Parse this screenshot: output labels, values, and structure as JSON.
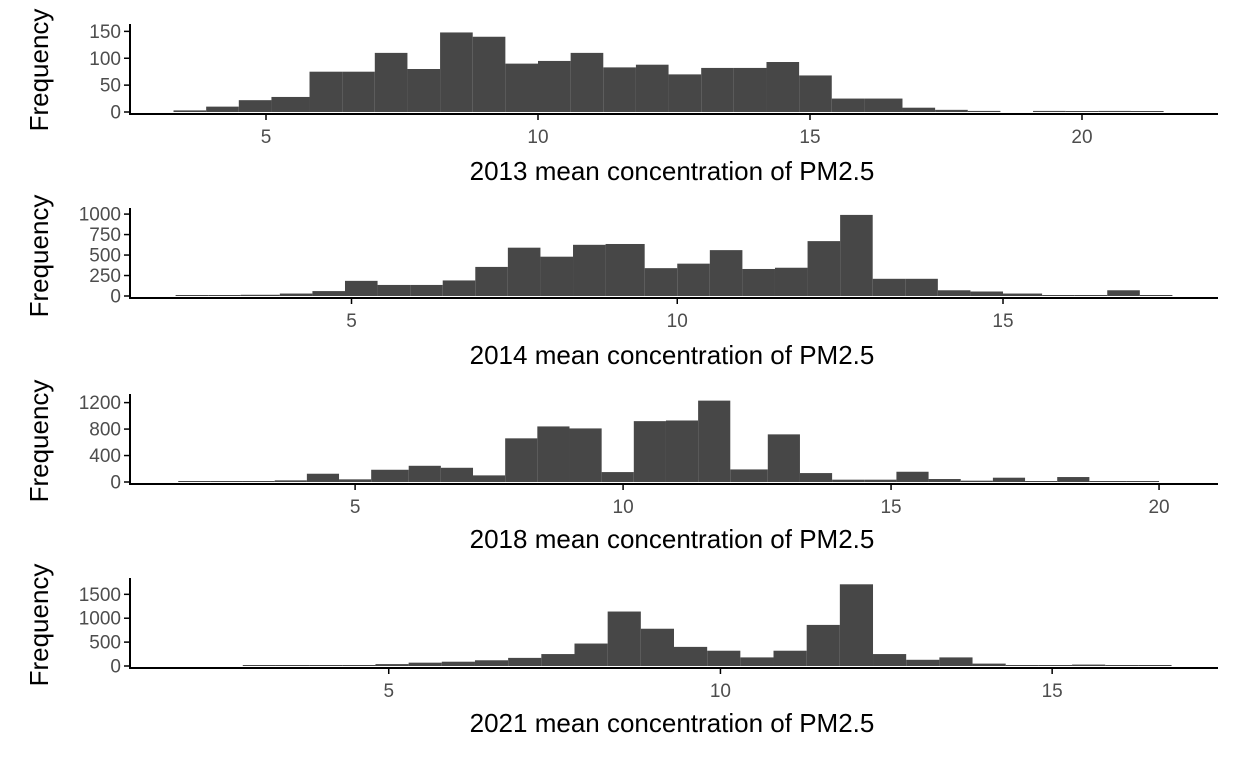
{
  "figure": {
    "background": "#ffffff",
    "bar_color": "#474747",
    "axis_color": "#000000",
    "tick_label_color": "#4d4d4d"
  },
  "chart_data": [
    {
      "type": "bar",
      "subtype": "histogram",
      "xlabel": "2013 mean concentration of PM2.5",
      "ylabel": "Frequency",
      "xlim": [
        2.5,
        22.5
      ],
      "ylim": [
        0,
        160
      ],
      "xticks": [
        5,
        10,
        15,
        20
      ],
      "yticks": [
        0,
        50,
        100,
        150
      ],
      "grid": false,
      "bins": [
        {
          "x0": 3.3,
          "x1": 3.9,
          "count": 3
        },
        {
          "x0": 3.9,
          "x1": 4.5,
          "count": 10
        },
        {
          "x0": 4.5,
          "x1": 5.1,
          "count": 22
        },
        {
          "x0": 5.1,
          "x1": 5.8,
          "count": 28
        },
        {
          "x0": 5.8,
          "x1": 6.4,
          "count": 75
        },
        {
          "x0": 6.4,
          "x1": 7.0,
          "count": 75
        },
        {
          "x0": 7.0,
          "x1": 7.6,
          "count": 110
        },
        {
          "x0": 7.6,
          "x1": 8.2,
          "count": 80
        },
        {
          "x0": 8.2,
          "x1": 8.8,
          "count": 148
        },
        {
          "x0": 8.8,
          "x1": 9.4,
          "count": 140
        },
        {
          "x0": 9.4,
          "x1": 10.0,
          "count": 90
        },
        {
          "x0": 10.0,
          "x1": 10.6,
          "count": 95
        },
        {
          "x0": 10.6,
          "x1": 11.2,
          "count": 110
        },
        {
          "x0": 11.2,
          "x1": 11.8,
          "count": 83
        },
        {
          "x0": 11.8,
          "x1": 12.4,
          "count": 88
        },
        {
          "x0": 12.4,
          "x1": 13.0,
          "count": 70
        },
        {
          "x0": 13.0,
          "x1": 13.6,
          "count": 82
        },
        {
          "x0": 13.6,
          "x1": 14.2,
          "count": 82
        },
        {
          "x0": 14.2,
          "x1": 14.8,
          "count": 93
        },
        {
          "x0": 14.8,
          "x1": 15.4,
          "count": 68
        },
        {
          "x0": 15.4,
          "x1": 16.0,
          "count": 25
        },
        {
          "x0": 16.0,
          "x1": 16.7,
          "count": 25
        },
        {
          "x0": 16.7,
          "x1": 17.3,
          "count": 8
        },
        {
          "x0": 17.3,
          "x1": 17.9,
          "count": 4
        },
        {
          "x0": 17.9,
          "x1": 18.5,
          "count": 2
        },
        {
          "x0": 18.5,
          "x1": 19.1,
          "count": 0
        },
        {
          "x0": 19.1,
          "x1": 19.7,
          "count": 2
        },
        {
          "x0": 19.7,
          "x1": 20.3,
          "count": 1
        },
        {
          "x0": 20.3,
          "x1": 20.9,
          "count": 2
        },
        {
          "x0": 20.9,
          "x1": 21.5,
          "count": 1
        }
      ]
    },
    {
      "type": "bar",
      "subtype": "histogram",
      "xlabel": "2014 mean concentration of PM2.5",
      "ylabel": "Frequency",
      "xlim": [
        1.6,
        18.3
      ],
      "ylim": [
        0,
        1050
      ],
      "xticks": [
        5,
        10,
        15
      ],
      "yticks": [
        0,
        250,
        500,
        750,
        1000
      ],
      "grid": false,
      "bins": [
        {
          "x0": 2.3,
          "x1": 2.8,
          "count": 2
        },
        {
          "x0": 2.8,
          "x1": 3.3,
          "count": 5
        },
        {
          "x0": 3.3,
          "x1": 3.9,
          "count": 15
        },
        {
          "x0": 3.9,
          "x1": 4.4,
          "count": 30
        },
        {
          "x0": 4.4,
          "x1": 4.9,
          "count": 60
        },
        {
          "x0": 4.9,
          "x1": 5.4,
          "count": 185
        },
        {
          "x0": 5.4,
          "x1": 5.9,
          "count": 135
        },
        {
          "x0": 5.9,
          "x1": 6.4,
          "count": 135
        },
        {
          "x0": 6.4,
          "x1": 6.9,
          "count": 190
        },
        {
          "x0": 6.9,
          "x1": 7.4,
          "count": 355
        },
        {
          "x0": 7.4,
          "x1": 7.9,
          "count": 590
        },
        {
          "x0": 7.9,
          "x1": 8.4,
          "count": 480
        },
        {
          "x0": 8.4,
          "x1": 8.9,
          "count": 625
        },
        {
          "x0": 8.9,
          "x1": 9.5,
          "count": 635
        },
        {
          "x0": 9.5,
          "x1": 10.0,
          "count": 340
        },
        {
          "x0": 10.0,
          "x1": 10.5,
          "count": 395
        },
        {
          "x0": 10.5,
          "x1": 11.0,
          "count": 560
        },
        {
          "x0": 11.0,
          "x1": 11.5,
          "count": 330
        },
        {
          "x0": 11.5,
          "x1": 12.0,
          "count": 345
        },
        {
          "x0": 12.0,
          "x1": 12.5,
          "count": 670
        },
        {
          "x0": 12.5,
          "x1": 13.0,
          "count": 990
        },
        {
          "x0": 13.0,
          "x1": 13.5,
          "count": 210
        },
        {
          "x0": 13.5,
          "x1": 14.0,
          "count": 210
        },
        {
          "x0": 14.0,
          "x1": 14.5,
          "count": 70
        },
        {
          "x0": 14.5,
          "x1": 15.0,
          "count": 55
        },
        {
          "x0": 15.0,
          "x1": 15.6,
          "count": 30
        },
        {
          "x0": 15.6,
          "x1": 16.1,
          "count": 10
        },
        {
          "x0": 16.1,
          "x1": 16.6,
          "count": 10
        },
        {
          "x0": 16.6,
          "x1": 17.1,
          "count": 70
        },
        {
          "x0": 17.1,
          "x1": 17.6,
          "count": 2
        }
      ]
    },
    {
      "type": "bar",
      "subtype": "histogram",
      "xlabel": "2018 mean concentration of PM2.5",
      "ylabel": "Frequency",
      "xlim": [
        0.8,
        21.1
      ],
      "ylim": [
        0,
        1300
      ],
      "xticks": [
        5,
        10,
        15,
        20
      ],
      "yticks": [
        0,
        400,
        800,
        1200
      ],
      "grid": false,
      "bins": [
        {
          "x0": 1.7,
          "x1": 2.3,
          "count": 5
        },
        {
          "x0": 2.3,
          "x1": 2.9,
          "count": 5
        },
        {
          "x0": 2.9,
          "x1": 3.5,
          "count": 5
        },
        {
          "x0": 3.5,
          "x1": 4.1,
          "count": 25
        },
        {
          "x0": 4.1,
          "x1": 4.7,
          "count": 125
        },
        {
          "x0": 4.7,
          "x1": 5.3,
          "count": 40
        },
        {
          "x0": 5.3,
          "x1": 6.0,
          "count": 185
        },
        {
          "x0": 6.0,
          "x1": 6.6,
          "count": 245
        },
        {
          "x0": 6.6,
          "x1": 7.2,
          "count": 215
        },
        {
          "x0": 7.2,
          "x1": 7.8,
          "count": 100
        },
        {
          "x0": 7.8,
          "x1": 8.4,
          "count": 660
        },
        {
          "x0": 8.4,
          "x1": 9.0,
          "count": 840
        },
        {
          "x0": 9.0,
          "x1": 9.6,
          "count": 810
        },
        {
          "x0": 9.6,
          "x1": 10.2,
          "count": 150
        },
        {
          "x0": 10.2,
          "x1": 10.8,
          "count": 920
        },
        {
          "x0": 10.8,
          "x1": 11.4,
          "count": 930
        },
        {
          "x0": 11.4,
          "x1": 12.0,
          "count": 1230
        },
        {
          "x0": 12.0,
          "x1": 12.7,
          "count": 190
        },
        {
          "x0": 12.7,
          "x1": 13.3,
          "count": 720
        },
        {
          "x0": 13.3,
          "x1": 13.9,
          "count": 135
        },
        {
          "x0": 13.9,
          "x1": 14.5,
          "count": 35
        },
        {
          "x0": 14.5,
          "x1": 15.1,
          "count": 35
        },
        {
          "x0": 15.1,
          "x1": 15.7,
          "count": 155
        },
        {
          "x0": 15.7,
          "x1": 16.3,
          "count": 45
        },
        {
          "x0": 16.3,
          "x1": 16.9,
          "count": 20
        },
        {
          "x0": 16.9,
          "x1": 17.5,
          "count": 65
        },
        {
          "x0": 17.5,
          "x1": 18.1,
          "count": 5
        },
        {
          "x0": 18.1,
          "x1": 18.7,
          "count": 75
        },
        {
          "x0": 18.7,
          "x1": 19.4,
          "count": 10
        },
        {
          "x0": 19.4,
          "x1": 20.0,
          "count": 10
        }
      ]
    },
    {
      "type": "bar",
      "subtype": "histogram",
      "xlabel": "2021 mean concentration of PM2.5",
      "ylabel": "Frequency",
      "xlim": [
        1.1,
        17.5
      ],
      "ylim": [
        0,
        1800
      ],
      "xticks": [
        5,
        10,
        15
      ],
      "yticks": [
        0,
        500,
        1000,
        1500
      ],
      "grid": false,
      "bins": [
        {
          "x0": 2.8,
          "x1": 3.3,
          "count": 5
        },
        {
          "x0": 3.3,
          "x1": 3.8,
          "count": 5
        },
        {
          "x0": 3.8,
          "x1": 4.3,
          "count": 10
        },
        {
          "x0": 4.3,
          "x1": 4.8,
          "count": 15
        },
        {
          "x0": 4.8,
          "x1": 5.3,
          "count": 40
        },
        {
          "x0": 5.3,
          "x1": 5.8,
          "count": 70
        },
        {
          "x0": 5.8,
          "x1": 6.3,
          "count": 90
        },
        {
          "x0": 6.3,
          "x1": 6.8,
          "count": 120
        },
        {
          "x0": 6.8,
          "x1": 7.3,
          "count": 170
        },
        {
          "x0": 7.3,
          "x1": 7.8,
          "count": 250
        },
        {
          "x0": 7.8,
          "x1": 8.3,
          "count": 470
        },
        {
          "x0": 8.3,
          "x1": 8.8,
          "count": 1140
        },
        {
          "x0": 8.8,
          "x1": 9.3,
          "count": 780
        },
        {
          "x0": 9.3,
          "x1": 9.8,
          "count": 400
        },
        {
          "x0": 9.8,
          "x1": 10.3,
          "count": 320
        },
        {
          "x0": 10.3,
          "x1": 10.8,
          "count": 180
        },
        {
          "x0": 10.8,
          "x1": 11.3,
          "count": 320
        },
        {
          "x0": 11.3,
          "x1": 11.8,
          "count": 860
        },
        {
          "x0": 11.8,
          "x1": 12.3,
          "count": 1710
        },
        {
          "x0": 12.3,
          "x1": 12.8,
          "count": 250
        },
        {
          "x0": 12.8,
          "x1": 13.3,
          "count": 130
        },
        {
          "x0": 13.3,
          "x1": 13.8,
          "count": 180
        },
        {
          "x0": 13.8,
          "x1": 14.3,
          "count": 50
        },
        {
          "x0": 14.3,
          "x1": 14.8,
          "count": 10
        },
        {
          "x0": 14.8,
          "x1": 15.3,
          "count": 10
        },
        {
          "x0": 15.3,
          "x1": 15.8,
          "count": 30
        },
        {
          "x0": 15.8,
          "x1": 16.3,
          "count": 5
        },
        {
          "x0": 16.3,
          "x1": 16.8,
          "count": 2
        }
      ]
    }
  ]
}
